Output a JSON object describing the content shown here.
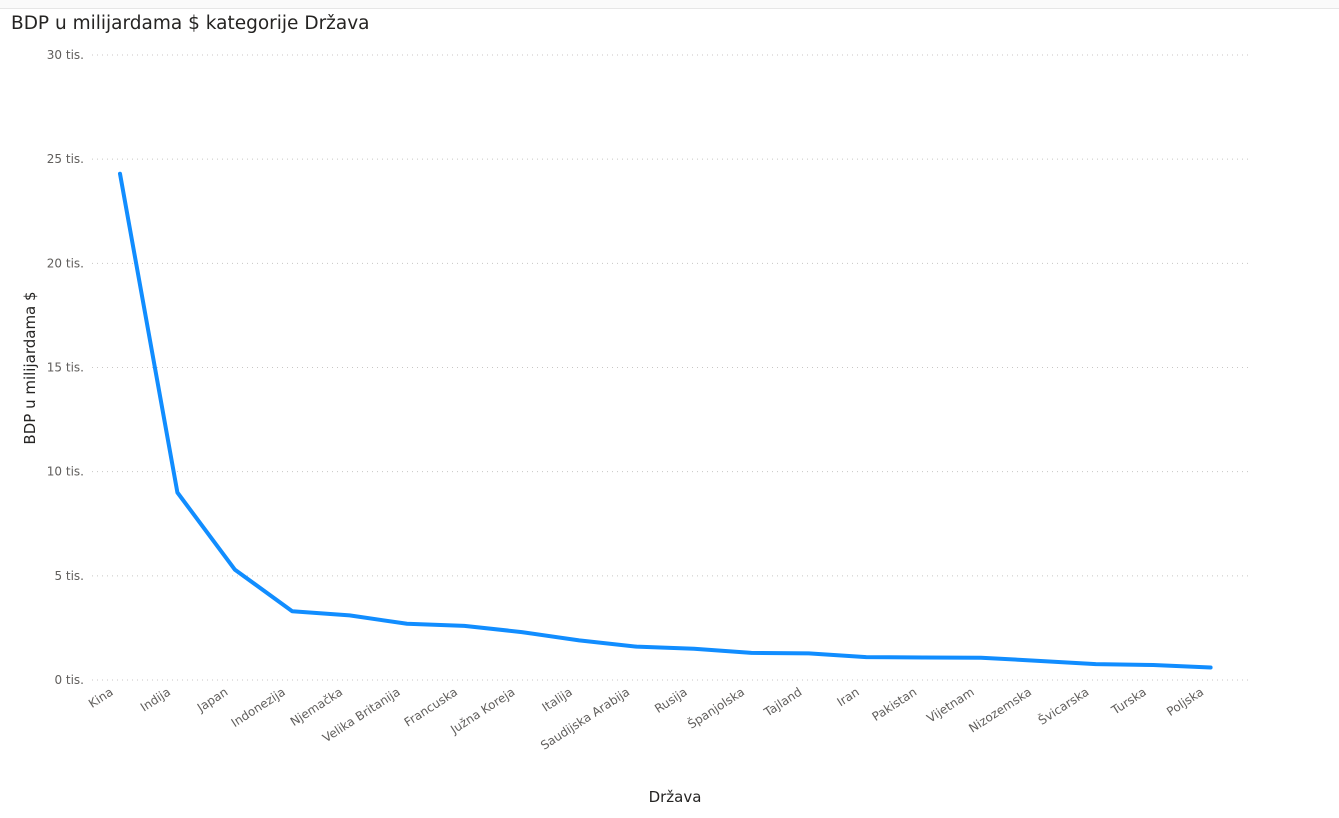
{
  "chart_data": {
    "type": "line",
    "title": "BDP u milijardama $ kategorije Država",
    "xlabel": "Država",
    "ylabel": "BDP u milijardama $",
    "categories": [
      "Kina",
      "Indija",
      "Japan",
      "Indonezija",
      "Njemačka",
      "Velika Britanija",
      "Francuska",
      "Južna Koreja",
      "Italija",
      "Saudijska Arabija",
      "Rusija",
      "Španjolska",
      "Tajland",
      "Iran",
      "Pakistan",
      "Vijetnam",
      "Nizozemska",
      "Švicarska",
      "Turska",
      "Poljska"
    ],
    "series": [
      {
        "values": [
          24300,
          9000,
          5300,
          3300,
          3100,
          2700,
          2600,
          2300,
          1900,
          1600,
          1500,
          1300,
          1280,
          1100,
          1080,
          1070,
          920,
          760,
          720,
          600
        ]
      }
    ],
    "ylim": [
      0,
      30000
    ],
    "yticks": [
      {
        "value": 0,
        "label": "0 tis."
      },
      {
        "value": 5000,
        "label": "5 tis."
      },
      {
        "value": 10000,
        "label": "10 tis."
      },
      {
        "value": 15000,
        "label": "15 tis."
      },
      {
        "value": 20000,
        "label": "20 tis."
      },
      {
        "value": 25000,
        "label": "25 tis."
      },
      {
        "value": 30000,
        "label": "30 tis."
      }
    ],
    "grid": true,
    "line_color": "#118DFF",
    "grid_color": "#c8c6c4"
  }
}
